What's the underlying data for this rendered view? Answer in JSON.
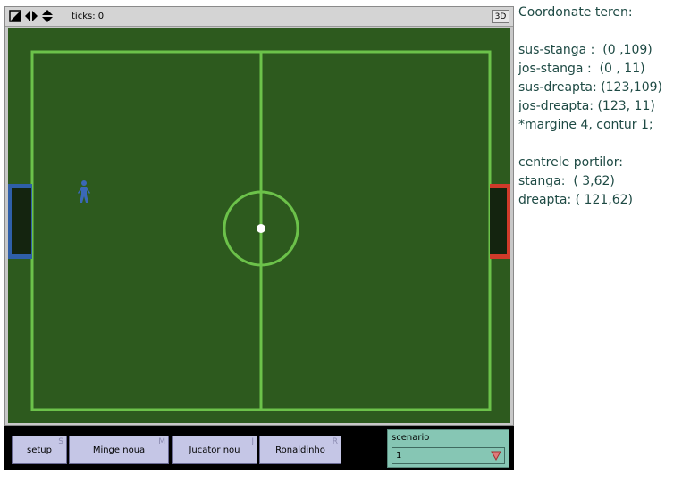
{
  "view": {
    "ticks_label": "ticks: 0",
    "three_d_label": "3D",
    "colors": {
      "grass": "#2d5a1e",
      "border_grass": "#3c7a24",
      "lines": "#6cc24a",
      "left_goal": "#2f5fa8",
      "right_goal": "#d03a2a",
      "goal_inner": "#14240f",
      "player": "#3a68b8",
      "ball": "#ffffff"
    }
  },
  "buttons": [
    {
      "label": "setup",
      "key": "S"
    },
    {
      "label": "Minge noua",
      "key": "M"
    },
    {
      "label": "Jucator nou",
      "key": "J"
    },
    {
      "label": "Ronaldinho",
      "key": "R"
    }
  ],
  "scenario": {
    "label": "scenario",
    "value": "1"
  },
  "notes": {
    "lines": [
      "Coordonate teren:",
      "",
      "sus-stanga :  (0 ,109)",
      "jos-stanga :  (0 , 11)",
      "sus-dreapta: (123,109)",
      "jos-dreapta: (123, 11)",
      "*margine 4, contur 1;",
      "",
      "centrele portilor:",
      "stanga:  ( 3,62)",
      "dreapta: ( 121,62)"
    ]
  }
}
